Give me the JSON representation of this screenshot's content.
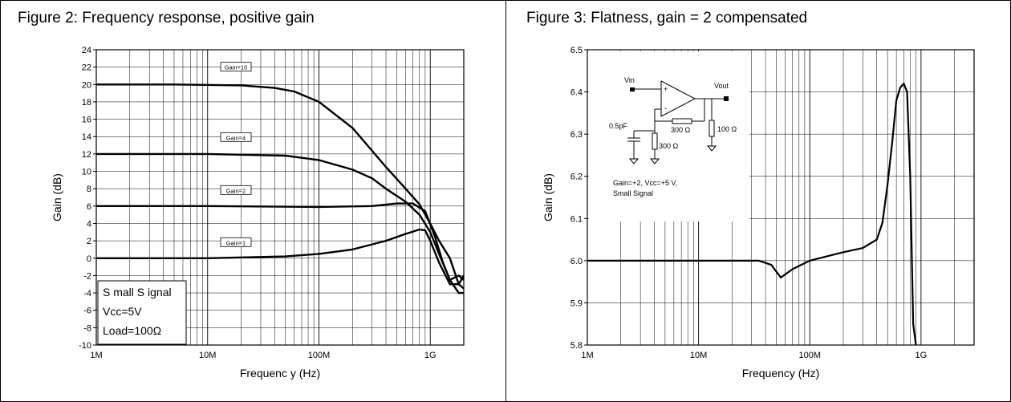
{
  "chart_data": [
    {
      "type": "line",
      "title": "Figure 2: Frequency response, positive gain",
      "xlabel": "Frequenc y (Hz)",
      "ylabel": "Gain (dB)",
      "x_scale": "log",
      "xlim": [
        1000000,
        2000000000
      ],
      "ylim": [
        -10,
        24
      ],
      "x_ticks": [
        1000000,
        10000000,
        100000000,
        1000000000
      ],
      "x_tick_labels": [
        "1M",
        "10M",
        "100M",
        "1G"
      ],
      "y_ticks": [
        -10,
        -8,
        -6,
        -4,
        -2,
        0,
        2,
        4,
        6,
        8,
        10,
        12,
        14,
        16,
        18,
        20,
        22,
        24
      ],
      "y_tick_labels": [
        "-10",
        "-8",
        "-6",
        "-4",
        "-2",
        "0",
        "2",
        "4",
        "6",
        "8",
        "10",
        "12",
        "14",
        "16",
        "18",
        "20",
        "22",
        "24"
      ],
      "grid": true,
      "annotation_lines": [
        "S mall S ignal",
        "Vcc=5V",
        "Load=100Ω"
      ],
      "series": [
        {
          "name": "Gain=10",
          "x": [
            1000000,
            5000000,
            20000000,
            40000000,
            60000000,
            100000000,
            200000000,
            400000000,
            600000000,
            800000000,
            1000000000,
            1200000000,
            1500000000,
            1800000000,
            2000000000
          ],
          "y": [
            20,
            20,
            19.9,
            19.6,
            19.2,
            18,
            15,
            10.5,
            8,
            6.2,
            4,
            2,
            0,
            -3,
            -3.5
          ]
        },
        {
          "name": "Gain=4",
          "x": [
            1000000,
            10000000,
            50000000,
            100000000,
            200000000,
            300000000,
            400000000,
            600000000,
            800000000,
            1000000000,
            1200000000,
            1500000000,
            1800000000,
            2000000000
          ],
          "y": [
            12,
            12,
            11.8,
            11.3,
            10.2,
            9.2,
            8,
            6.5,
            5,
            3,
            0.5,
            -2.5,
            -4,
            -4
          ]
        },
        {
          "name": "Gain=2",
          "x": [
            1000000,
            10000000,
            100000000,
            300000000,
            500000000,
            700000000,
            900000000,
            1100000000,
            1300000000,
            1500000000,
            1800000000,
            2000000000
          ],
          "y": [
            6,
            6,
            5.9,
            6,
            6.3,
            6.3,
            5.4,
            2.5,
            -0.5,
            -2.5,
            -2,
            -2.5
          ]
        },
        {
          "name": "Gain=1",
          "x": [
            1000000,
            10000000,
            50000000,
            100000000,
            200000000,
            400000000,
            600000000,
            800000000,
            900000000,
            1000000000,
            1200000000,
            1500000000,
            1800000000,
            2000000000
          ],
          "y": [
            0,
            0,
            0.2,
            0.5,
            1,
            2,
            2.8,
            3.3,
            3.2,
            2,
            -0.5,
            -3,
            -3,
            -2
          ]
        }
      ]
    },
    {
      "type": "line",
      "title": "Figure 3: Flatness, gain = 2 compensated",
      "xlabel": "Frequency (Hz)",
      "ylabel": "Gain (dB)",
      "x_scale": "log",
      "xlim": [
        1000000,
        3000000000
      ],
      "ylim": [
        5.8,
        6.5
      ],
      "x_ticks": [
        1000000,
        10000000,
        100000000,
        1000000000
      ],
      "x_tick_labels": [
        "1M",
        "10M",
        "100M",
        "1G"
      ],
      "y_ticks": [
        5.8,
        5.9,
        6.0,
        6.1,
        6.2,
        6.3,
        6.4,
        6.5
      ],
      "y_tick_labels": [
        "5.8",
        "5.9",
        "6.0",
        "6.1",
        "6.2",
        "6.3",
        "6.4",
        "6.5"
      ],
      "grid": true,
      "inset_labels": {
        "vin": "Vin",
        "vout": "Vout",
        "plus": "+",
        "minus": "-",
        "cap": "0.5pF",
        "rf": "300 Ω",
        "rg": "300 Ω",
        "rl": "100 Ω",
        "cond1": "Gain=+2, Vcc=+5   V,",
        "cond2": "Small Signal"
      },
      "series": [
        {
          "x": [
            1000000,
            2000000,
            5000000,
            10000000,
            20000000,
            35000000,
            45000000,
            55000000,
            70000000,
            100000000,
            200000000,
            300000000,
            400000000,
            450000000,
            500000000,
            550000000,
            600000000,
            650000000,
            700000000,
            750000000,
            800000000,
            850000000,
            900000000
          ],
          "y": [
            6.0,
            6.0,
            6.0,
            6.0,
            6.0,
            6.0,
            5.99,
            5.96,
            5.98,
            6.0,
            6.02,
            6.03,
            6.05,
            6.09,
            6.18,
            6.28,
            6.38,
            6.41,
            6.42,
            6.4,
            6.2,
            5.85,
            5.8
          ]
        }
      ]
    }
  ]
}
